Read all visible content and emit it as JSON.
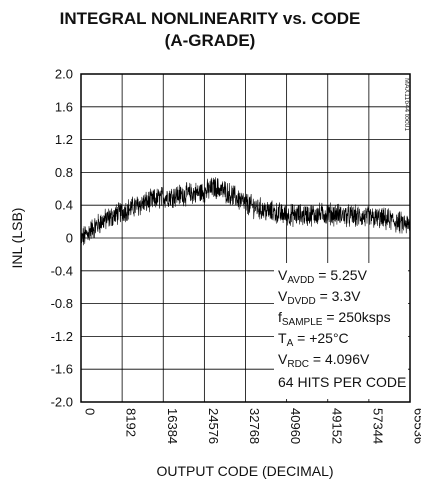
{
  "chart_data": {
    "type": "line",
    "title": [
      "INTEGRAL NONLINEARITY vs. CODE",
      "(A-GRADE)"
    ],
    "xlabel": "OUTPUT CODE (DECIMAL)",
    "ylabel": "INL (LSB)",
    "xlim": [
      0,
      65536
    ],
    "ylim": [
      -2.0,
      2.0
    ],
    "x_ticks": [
      0,
      8192,
      16384,
      24576,
      32768,
      40960,
      49152,
      57344,
      65536
    ],
    "y_ticks": [
      2.0,
      1.6,
      1.2,
      0.8,
      0.4,
      0,
      -0.4,
      -0.8,
      -1.2,
      -1.6,
      -2.0
    ],
    "y_tick_labels": [
      "2.0",
      "1.6",
      "1.2",
      "0.8",
      "0.4",
      "0",
      "-0.4",
      "-0.8",
      "-1.2",
      "-1.6",
      "-2.0"
    ],
    "grid": true,
    "series": [
      {
        "x": [
          0,
          2048,
          4096,
          8192,
          12288,
          16384,
          20480,
          24576,
          26624,
          28672,
          30720,
          32768,
          36864,
          40960,
          45056,
          49152,
          53248,
          57344,
          61440,
          65535
        ],
        "y_center": [
          -0.02,
          0.1,
          0.2,
          0.32,
          0.42,
          0.5,
          0.53,
          0.56,
          0.62,
          0.57,
          0.5,
          0.42,
          0.33,
          0.28,
          0.28,
          0.3,
          0.27,
          0.25,
          0.22,
          0.15
        ],
        "noise_band": 0.12
      }
    ],
    "annotations": {
      "vavdd": {
        "main": "V",
        "sub": "AVDD",
        "value": " = 5.25V"
      },
      "vdvdd": {
        "main": "V",
        "sub": "DVDD",
        "value": " = 3.3V"
      },
      "fsample": {
        "main": "f",
        "sub": "SAMPLE",
        "value": " = 250ksps"
      },
      "ta": {
        "main": "T",
        "sub": "A",
        "value": " = +25°C"
      },
      "vrdc": {
        "main": "V",
        "sub": "RDC",
        "value": " = 4.096V"
      },
      "hits": "64 HITS PER CODE"
    },
    "part_number": "MAX11644 toc01"
  }
}
